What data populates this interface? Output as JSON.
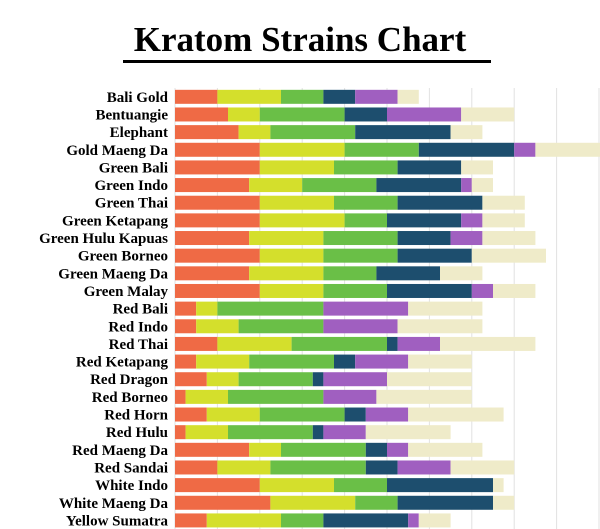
{
  "chart_data": {
    "type": "bar",
    "orientation": "horizontal",
    "stacked": true,
    "title": "Kratom Strains Chart",
    "xlabel": "",
    "ylabel": "",
    "grid": true,
    "legend": "none",
    "xlim": [
      0,
      40
    ],
    "categories": [
      "Bali Gold",
      "Bentuangie",
      "Elephant",
      "Gold Maeng Da",
      "Green Bali",
      "Green Indo",
      "Green Thai",
      "Green Ketapang",
      "Green Hulu Kapuas",
      "Green Borneo",
      "Green Maeng Da",
      "Green Malay",
      "Red Bali",
      "Red Indo",
      "Red Thai",
      "Red Ketapang",
      "Red Dragon",
      "Red Borneo",
      "Red Horn",
      "Red Hulu",
      "Red Maeng Da",
      "Red Sandai",
      "White Indo",
      "White Maeng Da",
      "Yellow Sumatra"
    ],
    "series": [
      {
        "color": "#ef6a45",
        "values": [
          4,
          5,
          6,
          8,
          8,
          7,
          8,
          8,
          7,
          8,
          7,
          8,
          2,
          2,
          4,
          2,
          3,
          1,
          3,
          1,
          7,
          4,
          8,
          9,
          3
        ]
      },
      {
        "color": "#d4df2c",
        "values": [
          6,
          3,
          3,
          8,
          7,
          5,
          7,
          8,
          7,
          6,
          7,
          6,
          2,
          4,
          7,
          5,
          3,
          4,
          5,
          4,
          3,
          5,
          7,
          8,
          7
        ]
      },
      {
        "color": "#6abf47",
        "values": [
          4,
          8,
          8,
          7,
          6,
          7,
          6,
          4,
          7,
          7,
          5,
          6,
          10,
          8,
          9,
          8,
          7,
          9,
          8,
          8,
          8,
          9,
          5,
          4,
          4
        ]
      },
      {
        "color": "#1d4e6e",
        "values": [
          3,
          4,
          9,
          9,
          6,
          8,
          8,
          7,
          5,
          7,
          6,
          8,
          0,
          0,
          1,
          2,
          1,
          0,
          2,
          1,
          2,
          3,
          10,
          9,
          8
        ]
      },
      {
        "color": "#a05fc0",
        "values": [
          4,
          7,
          0,
          2,
          0,
          1,
          0,
          2,
          3,
          0,
          0,
          2,
          8,
          7,
          4,
          5,
          6,
          5,
          4,
          4,
          2,
          5,
          0,
          0,
          1
        ]
      },
      {
        "color": "#efebc9",
        "values": [
          2,
          5,
          3,
          7,
          3,
          2,
          4,
          4,
          5,
          7,
          4,
          4,
          7,
          8,
          9,
          6,
          8,
          9,
          9,
          8,
          7,
          6,
          1,
          2,
          3
        ]
      }
    ]
  }
}
